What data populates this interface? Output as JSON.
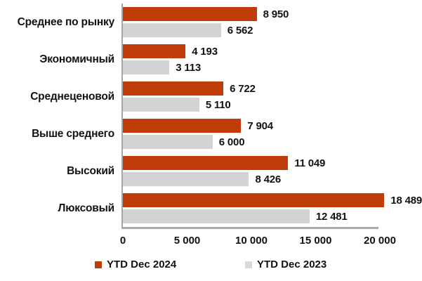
{
  "chart_data": {
    "type": "bar",
    "orientation": "horizontal",
    "title": "",
    "xlabel": "",
    "ylabel": "",
    "grid": false,
    "legend_position": "bottom",
    "xlim": [
      0,
      20000
    ],
    "x_ticks": [
      "0",
      "5 000",
      "10 000",
      "15 000",
      "20 000"
    ],
    "categories": [
      "Среднее по рынку",
      "Экономичный",
      "Среднеценовой",
      "Выше среднего",
      "Высокий",
      "Люксовый"
    ],
    "series": [
      {
        "name": "YTD Dec 2024",
        "color": "#c03c08",
        "values": [
          8950,
          4193,
          6722,
          7904,
          11049,
          18489
        ],
        "value_labels": [
          "8 950",
          "4 193",
          "6 722",
          "7 904",
          "11 049",
          "18 489"
        ]
      },
      {
        "name": "YTD Dec 2023",
        "color": "#d1d3d4",
        "values": [
          6562,
          3113,
          5110,
          6000,
          8426,
          12481
        ],
        "value_labels": [
          "6 562",
          "3 113",
          "5 110",
          "6 000",
          "8 426",
          "12 481"
        ]
      }
    ],
    "legend_swatch_colors": [
      "#c03c08",
      "#d8d9db"
    ]
  },
  "colors": {
    "axis_line": "#a6a6a6",
    "baseline": "#a8aaad",
    "text": "#121212",
    "background": "#ffffff"
  }
}
